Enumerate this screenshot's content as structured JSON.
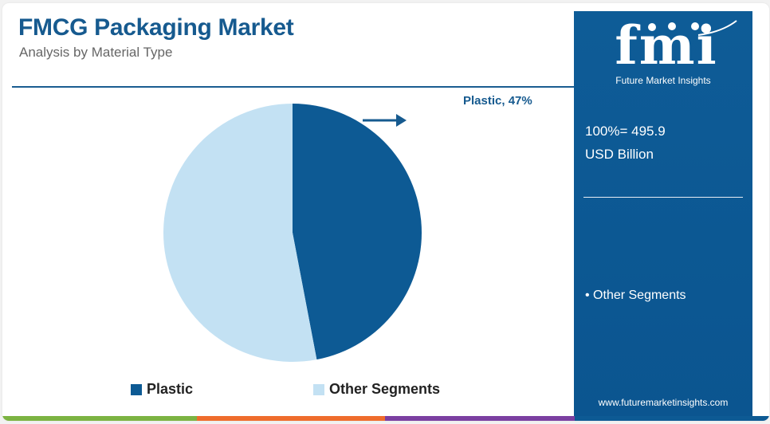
{
  "header": {
    "title": "FMCG Packaging Market",
    "subtitle": "Analysis by Material Type"
  },
  "side_panel": {
    "logo_letters": "fmi",
    "logo_name": "Future Market Insights",
    "total_line1": "100%= 495.9",
    "total_line2": "USD Billion",
    "bullet_text": "• Other Segments",
    "website": "www.futuremarketinsights.com"
  },
  "colors": {
    "plastic": "#0d5a94",
    "other": "#c3e1f3",
    "title": "#165a8f",
    "panel": "#0d5a94",
    "bar": [
      "#7cb342",
      "#ef6c2c",
      "#7b3fa1",
      "#0d5a94"
    ]
  },
  "chart_data": {
    "type": "pie",
    "title": "FMCG Packaging Market",
    "subtitle": "Analysis by Material Type",
    "slices": [
      {
        "label": "Plastic",
        "value": 47
      },
      {
        "label": "Other Segments",
        "value": 53
      }
    ],
    "callout": "Plastic, 47%",
    "total": "100%= 495.9 USD Billion",
    "legend_position": "bottom"
  }
}
